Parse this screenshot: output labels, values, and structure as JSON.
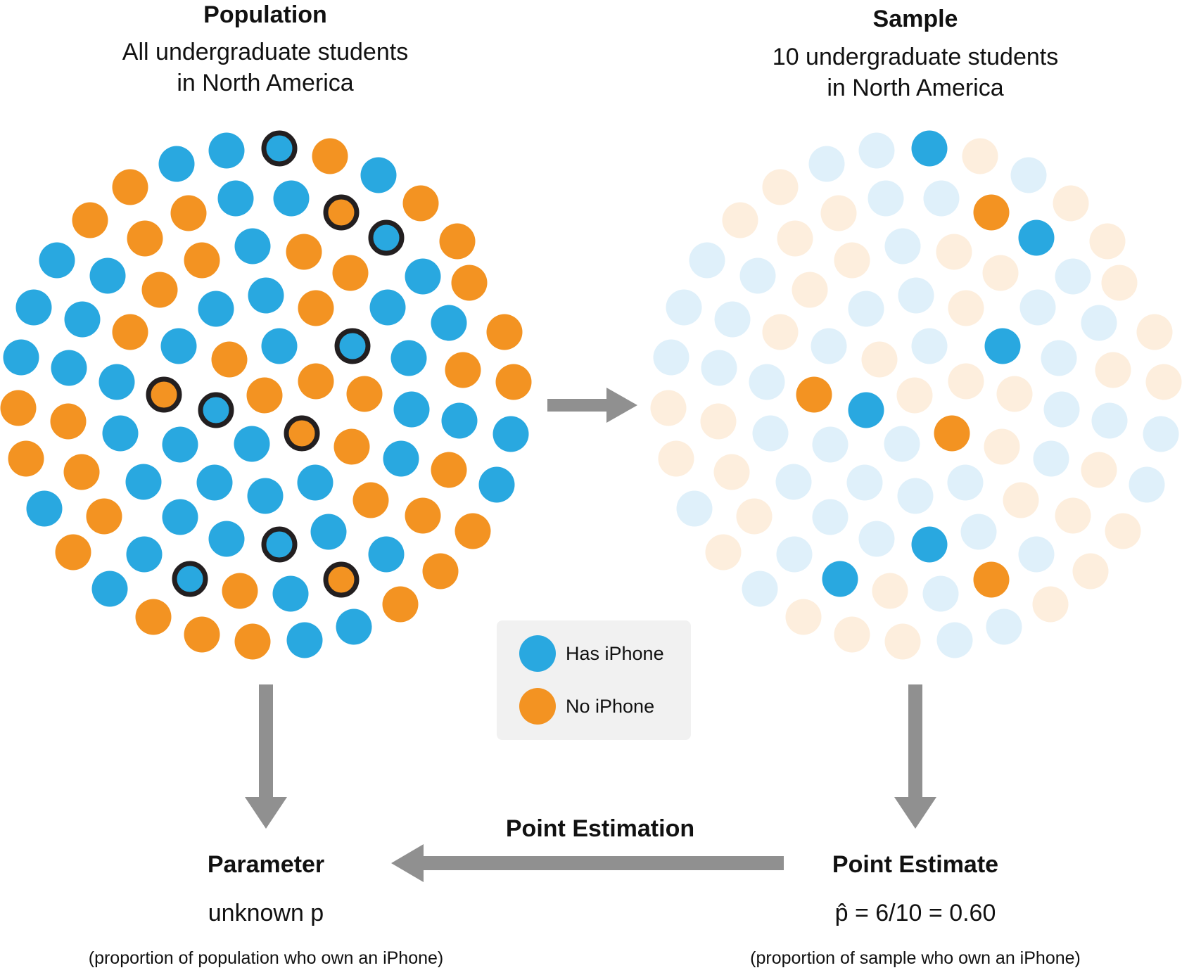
{
  "population": {
    "title": "Population",
    "subtitle_line1": "All undergraduate students",
    "subtitle_line2": "in North America"
  },
  "sample": {
    "title": "Sample",
    "subtitle_line1": "10 undergraduate students",
    "subtitle_line2": "in North America"
  },
  "legend": {
    "has_label": "Has iPhone",
    "no_label": "No iPhone"
  },
  "point_estimation_label": "Point Estimation",
  "parameter": {
    "title": "Parameter",
    "value": "unknown p",
    "note": "(proportion of population who own an iPhone)"
  },
  "point_estimate": {
    "title": "Point Estimate",
    "value": "p̂ = 6/10 = 0.60",
    "note": "(proportion of sample who own an iPhone)"
  },
  "colors": {
    "has_iphone": "#29a8e0",
    "no_iphone": "#f39322",
    "has_iphone_faded": "#dff0fa",
    "no_iphone_faded": "#fdeedd",
    "arrow": "#909090",
    "ring": "#231f20",
    "legend_bg": "#f1f1f1"
  },
  "sample_counts": {
    "has_iphone": 6,
    "no_iphone": 4,
    "total": 10
  }
}
